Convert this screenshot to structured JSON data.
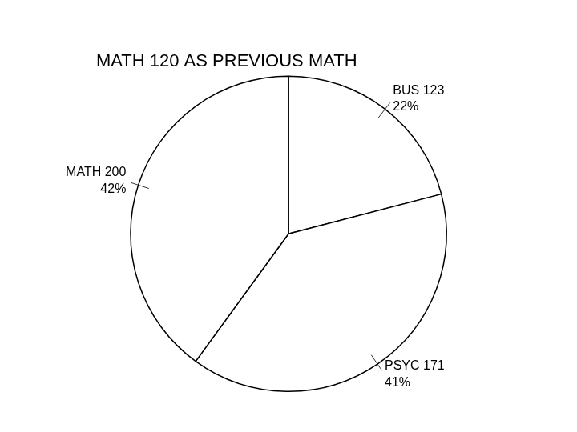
{
  "chart_data": {
    "type": "pie",
    "title": "MATH 120 AS PREVIOUS MATH",
    "categories": [
      "BUS 123",
      "PSYC 171",
      "MATH 200"
    ],
    "values": [
      22,
      41,
      42
    ],
    "value_labels": [
      "22%",
      "41%",
      "42%"
    ],
    "colors": [
      "#ffffff",
      "#ffffff",
      "#ffffff"
    ],
    "data_labels": true
  }
}
